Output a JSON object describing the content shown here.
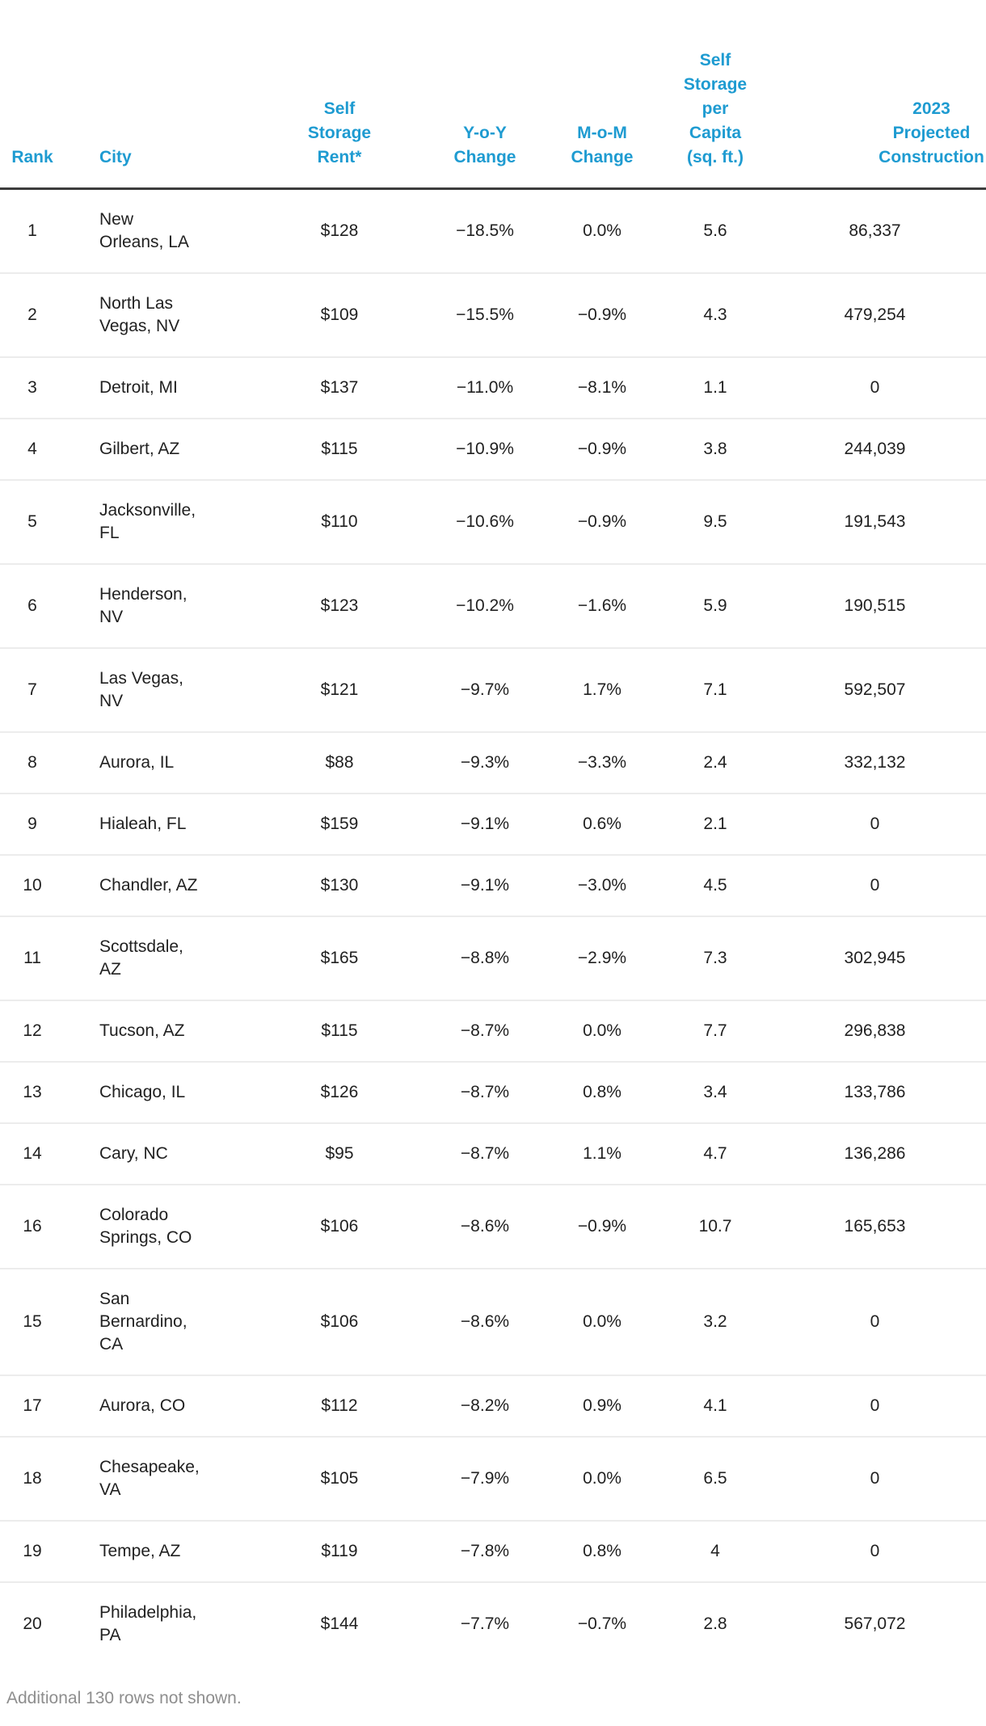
{
  "chart_data": {
    "type": "table",
    "columns": [
      {
        "key": "rank",
        "label": "Rank"
      },
      {
        "key": "city",
        "label": "City"
      },
      {
        "key": "rent",
        "label": "Self\nStorage\nRent*"
      },
      {
        "key": "yoy",
        "label": "Y-o-Y\nChange"
      },
      {
        "key": "mom",
        "label": "M-o-M\nChange"
      },
      {
        "key": "capita",
        "label": "Self\nStorage\nper\nCapita\n(sq. ft.)"
      },
      {
        "key": "construction",
        "label": "2023\nProjected\nConstruction"
      }
    ],
    "rows": [
      [
        "1",
        "New\nOrleans, LA",
        "$128",
        "−18.5%",
        "0.0%",
        "5.6",
        "86,337"
      ],
      [
        "2",
        "North Las\nVegas, NV",
        "$109",
        "−15.5%",
        "−0.9%",
        "4.3",
        "479,254"
      ],
      [
        "3",
        "Detroit, MI",
        "$137",
        "−11.0%",
        "−8.1%",
        "1.1",
        "0"
      ],
      [
        "4",
        "Gilbert, AZ",
        "$115",
        "−10.9%",
        "−0.9%",
        "3.8",
        "244,039"
      ],
      [
        "5",
        "Jacksonville,\nFL",
        "$110",
        "−10.6%",
        "−0.9%",
        "9.5",
        "191,543"
      ],
      [
        "6",
        "Henderson,\nNV",
        "$123",
        "−10.2%",
        "−1.6%",
        "5.9",
        "190,515"
      ],
      [
        "7",
        "Las Vegas,\nNV",
        "$121",
        "−9.7%",
        "1.7%",
        "7.1",
        "592,507"
      ],
      [
        "8",
        "Aurora, IL",
        "$88",
        "−9.3%",
        "−3.3%",
        "2.4",
        "332,132"
      ],
      [
        "9",
        "Hialeah, FL",
        "$159",
        "−9.1%",
        "0.6%",
        "2.1",
        "0"
      ],
      [
        "10",
        "Chandler, AZ",
        "$130",
        "−9.1%",
        "−3.0%",
        "4.5",
        "0"
      ],
      [
        "11",
        "Scottsdale,\nAZ",
        "$165",
        "−8.8%",
        "−2.9%",
        "7.3",
        "302,945"
      ],
      [
        "12",
        "Tucson, AZ",
        "$115",
        "−8.7%",
        "0.0%",
        "7.7",
        "296,838"
      ],
      [
        "13",
        "Chicago, IL",
        "$126",
        "−8.7%",
        "0.8%",
        "3.4",
        "133,786"
      ],
      [
        "14",
        "Cary, NC",
        "$95",
        "−8.7%",
        "1.1%",
        "4.7",
        "136,286"
      ],
      [
        "16",
        "Colorado\nSprings, CO",
        "$106",
        "−8.6%",
        "−0.9%",
        "10.7",
        "165,653"
      ],
      [
        "15",
        "San\nBernardino,\nCA",
        "$106",
        "−8.6%",
        "0.0%",
        "3.2",
        "0"
      ],
      [
        "17",
        "Aurora, CO",
        "$112",
        "−8.2%",
        "0.9%",
        "4.1",
        "0"
      ],
      [
        "18",
        "Chesapeake,\nVA",
        "$105",
        "−7.9%",
        "0.0%",
        "6.5",
        "0"
      ],
      [
        "19",
        "Tempe, AZ",
        "$119",
        "−7.8%",
        "0.8%",
        "4",
        "0"
      ],
      [
        "20",
        "Philadelphia,\nPA",
        "$144",
        "−7.7%",
        "−0.7%",
        "2.8",
        "567,072"
      ]
    ],
    "layout": {
      "grid": "horizontal-row-separators",
      "header_align": "bottom"
    }
  },
  "footer": {
    "note": "Additional 130 rows not shown."
  },
  "colors": {
    "header_text": "#1E9BD1",
    "body_text": "#212121",
    "row_separator": "#ECECEC",
    "header_border": "#3C3C3C",
    "footnote_text": "#8E8E8E"
  }
}
